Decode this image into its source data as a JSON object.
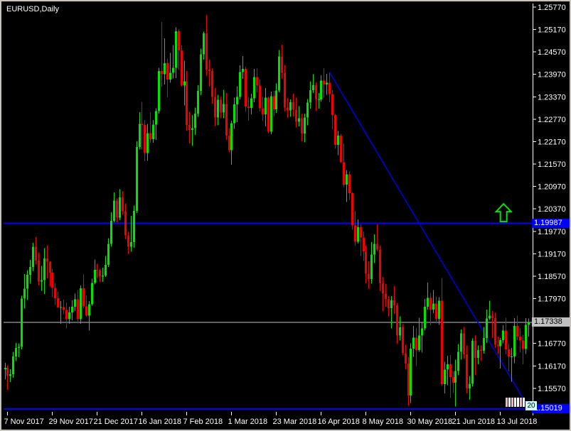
{
  "window": {
    "title": "EURUSD,Daily"
  },
  "colors": {
    "background": "#000000",
    "bull": "#00e400",
    "bear": "#f20000",
    "axis_text": "#ffffff",
    "axis_line": "#ffffff",
    "hline": "#0000ff",
    "trendline": "#0000d2",
    "bid_line": "#c0c6cc",
    "arrow": "#00e400",
    "tag_line_bg": "#0000ff",
    "tag_line_fg": "#ffffff",
    "tag_bid_bg": "#c0c0c0",
    "tag_bid_fg": "#000000"
  },
  "price_axis": {
    "tick_labels": [
      "1.25770",
      "1.25170",
      "1.24570",
      "1.23970",
      "1.23370",
      "1.22770",
      "1.22170",
      "1.21570",
      "1.20970",
      "1.20370",
      "1.19770",
      "1.19170",
      "1.18570",
      "1.17970",
      "1.17370",
      "1.16770",
      "1.16170",
      "1.15570"
    ],
    "tags": [
      {
        "label": "1.19987",
        "price": 1.19987,
        "kind": "hline"
      },
      {
        "label": "1.17338",
        "price": 1.17338,
        "kind": "bid"
      },
      {
        "label": "1.15019",
        "price": 1.15019,
        "kind": "hline"
      }
    ]
  },
  "time_axis": {
    "tick_labels": [
      "7 Nov 2017",
      "29 Nov 2017",
      "21 Dec 2017",
      "16 Jan 2018",
      "7 Feb 2018",
      "1 Mar 2018",
      "23 Mar 2018",
      "16 Apr 2018",
      "8 May 2018",
      "30 May 2018",
      "21 Jun 2018",
      "13 Jul 2018"
    ]
  },
  "widget": {
    "label": "20",
    "bar_colors": [
      "#f2b8bc",
      "#ffffff",
      "#f2b8bc",
      "#ffffff",
      "#ffffff",
      "#f2b8bc",
      "#ffffff"
    ]
  },
  "chart_data": {
    "type": "candlestick",
    "symbol": "EURUSD",
    "timeframe": "Daily",
    "title": "EURUSD,Daily",
    "y_axis_range": [
      1.148,
      1.2592
    ],
    "y_tick_step": 0.006,
    "grid": false,
    "last_bid": 1.17338,
    "x_tick_labels": [
      "7 Nov 2017",
      "29 Nov 2017",
      "21 Dec 2017",
      "16 Jan 2018",
      "7 Feb 2018",
      "1 Mar 2018",
      "23 Mar 2018",
      "16 Apr 2018",
      "8 May 2018",
      "30 May 2018",
      "21 Jun 2018",
      "13 Jul 2018"
    ],
    "x_tick_candle_indices": [
      1,
      17,
      33,
      49,
      65,
      81,
      97,
      113,
      129,
      145,
      161,
      177
    ],
    "annotations": {
      "horizontal_lines": [
        {
          "price": 1.19987,
          "color": "#0000ff"
        },
        {
          "price": 1.15019,
          "color": "#0000ff"
        }
      ],
      "bid_line": {
        "price": 1.17338,
        "color": "#c0c6cc"
      },
      "trendline": {
        "from_index": 116,
        "from_price": 1.2403,
        "to_index": 187.5,
        "to_price": 1.15,
        "color": "#0000d2"
      },
      "arrow_up": {
        "index": 178.2,
        "price": 1.2003,
        "color": "#00e400"
      }
    },
    "candles": [
      [
        1.1608,
        1.1625,
        1.158,
        1.1612
      ],
      [
        1.1612,
        1.1618,
        1.1553,
        1.159
      ],
      [
        1.159,
        1.1608,
        1.1574,
        1.1595
      ],
      [
        1.1595,
        1.1655,
        1.1585,
        1.1642
      ],
      [
        1.1642,
        1.1678,
        1.163,
        1.1665
      ],
      [
        1.1665,
        1.1677,
        1.164,
        1.1668
      ],
      [
        1.1668,
        1.1805,
        1.1661,
        1.1797
      ],
      [
        1.1797,
        1.1863,
        1.177,
        1.1824
      ],
      [
        1.1824,
        1.1873,
        1.1793,
        1.1861
      ],
      [
        1.1861,
        1.1901,
        1.1837,
        1.1882
      ],
      [
        1.1882,
        1.1946,
        1.187,
        1.1936
      ],
      [
        1.1936,
        1.1961,
        1.1888,
        1.1899
      ],
      [
        1.1899,
        1.1921,
        1.1832,
        1.1843
      ],
      [
        1.1843,
        1.1884,
        1.1818,
        1.1846
      ],
      [
        1.1846,
        1.1932,
        1.1809,
        1.1904
      ],
      [
        1.1904,
        1.194,
        1.1851,
        1.1896
      ],
      [
        1.1896,
        1.1898,
        1.1829,
        1.1866
      ],
      [
        1.1866,
        1.1877,
        1.1801,
        1.1826
      ],
      [
        1.1826,
        1.1838,
        1.178,
        1.1798
      ],
      [
        1.1798,
        1.1815,
        1.1772,
        1.1773
      ],
      [
        1.1773,
        1.179,
        1.173,
        1.1774
      ],
      [
        1.1774,
        1.1794,
        1.1755,
        1.1767
      ],
      [
        1.1767,
        1.1787,
        1.1717,
        1.1742
      ],
      [
        1.1742,
        1.1775,
        1.173,
        1.176
      ],
      [
        1.176,
        1.1792,
        1.1739,
        1.1775
      ],
      [
        1.1775,
        1.181,
        1.1764,
        1.1795
      ],
      [
        1.1795,
        1.182,
        1.1731,
        1.1742
      ],
      [
        1.1742,
        1.1832,
        1.173,
        1.1825
      ],
      [
        1.1825,
        1.1862,
        1.177,
        1.1776
      ],
      [
        1.1776,
        1.1805,
        1.1749,
        1.1751
      ],
      [
        1.1751,
        1.179,
        1.1712,
        1.1782
      ],
      [
        1.1782,
        1.185,
        1.1778,
        1.1839
      ],
      [
        1.1839,
        1.1902,
        1.1835,
        1.1874
      ],
      [
        1.1874,
        1.189,
        1.1852,
        1.1873
      ],
      [
        1.1873,
        1.1877,
        1.1842,
        1.1856
      ],
      [
        1.1856,
        1.188,
        1.1842,
        1.1859
      ],
      [
        1.1859,
        1.1911,
        1.1855,
        1.1887
      ],
      [
        1.1887,
        1.1959,
        1.1882,
        1.1943
      ],
      [
        1.1943,
        1.2028,
        1.1936,
        1.2005
      ],
      [
        1.2005,
        1.2081,
        1.2001,
        1.2059
      ],
      [
        1.2059,
        1.2065,
        1.2001,
        1.2014
      ],
      [
        1.2014,
        1.209,
        1.2007,
        1.2068
      ],
      [
        1.2068,
        1.2084,
        1.2021,
        1.2031
      ],
      [
        1.2031,
        1.2052,
        1.1956,
        1.1966
      ],
      [
        1.1966,
        1.1976,
        1.1916,
        1.1936
      ],
      [
        1.1936,
        1.2018,
        1.1922,
        1.1948
      ],
      [
        1.1948,
        1.2046,
        1.1933,
        1.2032
      ],
      [
        1.2032,
        1.2218,
        1.2026,
        1.2203
      ],
      [
        1.2203,
        1.2296,
        1.2196,
        1.2264
      ],
      [
        1.2264,
        1.2323,
        1.2196,
        1.2262
      ],
      [
        1.2262,
        1.2275,
        1.2165,
        1.2187
      ],
      [
        1.2187,
        1.2264,
        1.2166,
        1.224
      ],
      [
        1.224,
        1.2296,
        1.2214,
        1.2224
      ],
      [
        1.2224,
        1.2275,
        1.2214,
        1.2263
      ],
      [
        1.2263,
        1.2306,
        1.2222,
        1.2299
      ],
      [
        1.2299,
        1.2415,
        1.2292,
        1.2406
      ],
      [
        1.2406,
        1.2537,
        1.2364,
        1.2397
      ],
      [
        1.2397,
        1.2493,
        1.237,
        1.2427
      ],
      [
        1.2427,
        1.2439,
        1.2336,
        1.2383
      ],
      [
        1.2383,
        1.2454,
        1.2375,
        1.2401
      ],
      [
        1.2401,
        1.2475,
        1.2386,
        1.2415
      ],
      [
        1.2415,
        1.2523,
        1.2387,
        1.2512
      ],
      [
        1.2512,
        1.2518,
        1.241,
        1.2461
      ],
      [
        1.2461,
        1.2475,
        1.2364,
        1.2367
      ],
      [
        1.2367,
        1.2434,
        1.2314,
        1.2378
      ],
      [
        1.2378,
        1.2406,
        1.2246,
        1.2262
      ],
      [
        1.2262,
        1.2297,
        1.2212,
        1.2248
      ],
      [
        1.2248,
        1.2288,
        1.2206,
        1.2253
      ],
      [
        1.2253,
        1.2308,
        1.2235,
        1.2292
      ],
      [
        1.2292,
        1.2368,
        1.2283,
        1.2353
      ],
      [
        1.2353,
        1.2466,
        1.2341,
        1.2451
      ],
      [
        1.2451,
        1.2511,
        1.2436,
        1.2507
      ],
      [
        1.2507,
        1.2556,
        1.2393,
        1.241
      ],
      [
        1.241,
        1.2436,
        1.2365,
        1.2406
      ],
      [
        1.2406,
        1.2413,
        1.2319,
        1.2337
      ],
      [
        1.2337,
        1.236,
        1.2259,
        1.2282
      ],
      [
        1.2282,
        1.2342,
        1.2261,
        1.2329
      ],
      [
        1.2329,
        1.2337,
        1.228,
        1.2295
      ],
      [
        1.2295,
        1.2356,
        1.228,
        1.2318
      ],
      [
        1.2318,
        1.2347,
        1.2222,
        1.2233
      ],
      [
        1.2233,
        1.2253,
        1.2188,
        1.2194
      ],
      [
        1.2194,
        1.2273,
        1.2155,
        1.2266
      ],
      [
        1.2266,
        1.2335,
        1.2251,
        1.2317
      ],
      [
        1.2317,
        1.2365,
        1.2269,
        1.2337
      ],
      [
        1.2337,
        1.2421,
        1.233,
        1.2403
      ],
      [
        1.2403,
        1.2446,
        1.2385,
        1.2412
      ],
      [
        1.2412,
        1.2417,
        1.2298,
        1.2311
      ],
      [
        1.2311,
        1.2336,
        1.2273,
        1.2307
      ],
      [
        1.2307,
        1.2345,
        1.229,
        1.2333
      ],
      [
        1.2333,
        1.2412,
        1.2322,
        1.239
      ],
      [
        1.239,
        1.2413,
        1.2349,
        1.2367
      ],
      [
        1.2367,
        1.2383,
        1.2298,
        1.2306
      ],
      [
        1.2306,
        1.2337,
        1.2273,
        1.229
      ],
      [
        1.229,
        1.236,
        1.2258,
        1.2335
      ],
      [
        1.2335,
        1.2338,
        1.224,
        1.2244
      ],
      [
        1.2244,
        1.2351,
        1.2237,
        1.2339
      ],
      [
        1.2339,
        1.2353,
        1.2285,
        1.2303
      ],
      [
        1.2303,
        1.2373,
        1.2294,
        1.2354
      ],
      [
        1.2354,
        1.2462,
        1.2349,
        1.2445
      ],
      [
        1.2445,
        1.2476,
        1.2385,
        1.2401
      ],
      [
        1.2401,
        1.2422,
        1.2298,
        1.2308
      ],
      [
        1.2308,
        1.2334,
        1.2281,
        1.2301
      ],
      [
        1.2301,
        1.233,
        1.2283,
        1.2322
      ],
      [
        1.2322,
        1.2345,
        1.2283,
        1.2302
      ],
      [
        1.2302,
        1.2335,
        1.2255,
        1.227
      ],
      [
        1.227,
        1.2312,
        1.2258,
        1.228
      ],
      [
        1.228,
        1.2291,
        1.2218,
        1.2239
      ],
      [
        1.2239,
        1.2292,
        1.2215,
        1.2282
      ],
      [
        1.2282,
        1.2331,
        1.2261,
        1.2321
      ],
      [
        1.2321,
        1.2378,
        1.2305,
        1.2355
      ],
      [
        1.2355,
        1.2397,
        1.2347,
        1.2368
      ],
      [
        1.2368,
        1.2376,
        1.2299,
        1.233
      ],
      [
        1.233,
        1.2347,
        1.2305,
        1.233
      ],
      [
        1.233,
        1.2395,
        1.2323,
        1.238
      ],
      [
        1.238,
        1.2414,
        1.2335,
        1.237
      ],
      [
        1.237,
        1.2398,
        1.2342,
        1.2375
      ],
      [
        1.2375,
        1.2401,
        1.2322,
        1.2344
      ],
      [
        1.2344,
        1.2355,
        1.225,
        1.2288
      ],
      [
        1.2288,
        1.2291,
        1.2198,
        1.2208
      ],
      [
        1.2208,
        1.2245,
        1.2181,
        1.2233
      ],
      [
        1.2233,
        1.2238,
        1.216,
        1.2162
      ],
      [
        1.2162,
        1.2211,
        1.2095,
        1.2102
      ],
      [
        1.2102,
        1.2141,
        1.2055,
        1.213
      ],
      [
        1.213,
        1.2138,
        1.2061,
        1.2079
      ],
      [
        1.2079,
        1.2082,
        1.1981,
        1.1993
      ],
      [
        1.1993,
        1.2032,
        1.1938,
        1.1949
      ],
      [
        1.1949,
        1.2009,
        1.1944,
        1.1988
      ],
      [
        1.1988,
        1.1996,
        1.1911,
        1.196
      ],
      [
        1.196,
        1.1977,
        1.1898,
        1.1923
      ],
      [
        1.1923,
        1.194,
        1.1838,
        1.1864
      ],
      [
        1.1864,
        1.1897,
        1.1823,
        1.1849
      ],
      [
        1.1849,
        1.1948,
        1.1837,
        1.1915
      ],
      [
        1.1915,
        1.1969,
        1.1892,
        1.1943
      ],
      [
        1.1943,
        1.1996,
        1.1924,
        1.1928
      ],
      [
        1.1928,
        1.194,
        1.1817,
        1.1838
      ],
      [
        1.1838,
        1.1854,
        1.1763,
        1.181
      ],
      [
        1.181,
        1.1837,
        1.1775,
        1.1795
      ],
      [
        1.1795,
        1.1804,
        1.175,
        1.1771
      ],
      [
        1.1771,
        1.1804,
        1.1717,
        1.1792
      ],
      [
        1.1792,
        1.183,
        1.1756,
        1.1779
      ],
      [
        1.1779,
        1.1786,
        1.1675,
        1.1698
      ],
      [
        1.1698,
        1.175,
        1.1685,
        1.172
      ],
      [
        1.172,
        1.1729,
        1.1645,
        1.1651
      ],
      [
        1.1651,
        1.1674,
        1.1607,
        1.1623
      ],
      [
        1.1623,
        1.164,
        1.151,
        1.1538
      ],
      [
        1.1538,
        1.1677,
        1.1518,
        1.1663
      ],
      [
        1.1663,
        1.1724,
        1.1641,
        1.1693
      ],
      [
        1.1693,
        1.1718,
        1.1617,
        1.1659
      ],
      [
        1.1659,
        1.1746,
        1.1655,
        1.1698
      ],
      [
        1.1698,
        1.1733,
        1.1653,
        1.1717
      ],
      [
        1.1717,
        1.1796,
        1.1712,
        1.1775
      ],
      [
        1.1775,
        1.184,
        1.1768,
        1.1799
      ],
      [
        1.1799,
        1.1812,
        1.1726,
        1.1768
      ],
      [
        1.1768,
        1.182,
        1.1758,
        1.1784
      ],
      [
        1.1784,
        1.1803,
        1.1731,
        1.1743
      ],
      [
        1.1743,
        1.1801,
        1.1727,
        1.1791
      ],
      [
        1.1791,
        1.1852,
        1.1563,
        1.1568
      ],
      [
        1.1568,
        1.1628,
        1.1543,
        1.1607
      ],
      [
        1.1607,
        1.1644,
        1.1565,
        1.1621
      ],
      [
        1.1621,
        1.1646,
        1.1531,
        1.1587
      ],
      [
        1.1587,
        1.1602,
        1.1545,
        1.1572
      ],
      [
        1.1572,
        1.1634,
        1.1508,
        1.1603
      ],
      [
        1.1603,
        1.1675,
        1.1592,
        1.1655
      ],
      [
        1.1655,
        1.1714,
        1.1634,
        1.1704
      ],
      [
        1.1704,
        1.1721,
        1.1636,
        1.1648
      ],
      [
        1.1648,
        1.1672,
        1.1543,
        1.1557
      ],
      [
        1.1557,
        1.159,
        1.1526,
        1.1569
      ],
      [
        1.1569,
        1.1691,
        1.1561,
        1.1684
      ],
      [
        1.1684,
        1.1698,
        1.1592,
        1.1638
      ],
      [
        1.1638,
        1.1672,
        1.1621,
        1.1659
      ],
      [
        1.1659,
        1.1672,
        1.163,
        1.1657
      ],
      [
        1.1657,
        1.1721,
        1.165,
        1.1692
      ],
      [
        1.1692,
        1.1768,
        1.1678,
        1.1744
      ],
      [
        1.1744,
        1.1791,
        1.174,
        1.1751
      ],
      [
        1.1751,
        1.1764,
        1.1692,
        1.1745
      ],
      [
        1.1745,
        1.1759,
        1.1665,
        1.1674
      ],
      [
        1.1674,
        1.1695,
        1.1649,
        1.167
      ],
      [
        1.167,
        1.1692,
        1.161,
        1.1686
      ],
      [
        1.1686,
        1.1726,
        1.1677,
        1.1712
      ],
      [
        1.1712,
        1.1746,
        1.1648,
        1.1661
      ],
      [
        1.1661,
        1.1675,
        1.1602,
        1.1642
      ],
      [
        1.1642,
        1.1665,
        1.1575,
        1.1642
      ],
      [
        1.1642,
        1.1745,
        1.1624,
        1.1724
      ],
      [
        1.1724,
        1.1751,
        1.1686,
        1.1695
      ],
      [
        1.1695,
        1.1718,
        1.1653,
        1.1685
      ],
      [
        1.1685,
        1.17,
        1.1621,
        1.1662
      ],
      [
        1.1662,
        1.1745,
        1.1649,
        1.1727
      ],
      [
        1.1727,
        1.1744,
        1.1695,
        1.17338
      ]
    ]
  }
}
